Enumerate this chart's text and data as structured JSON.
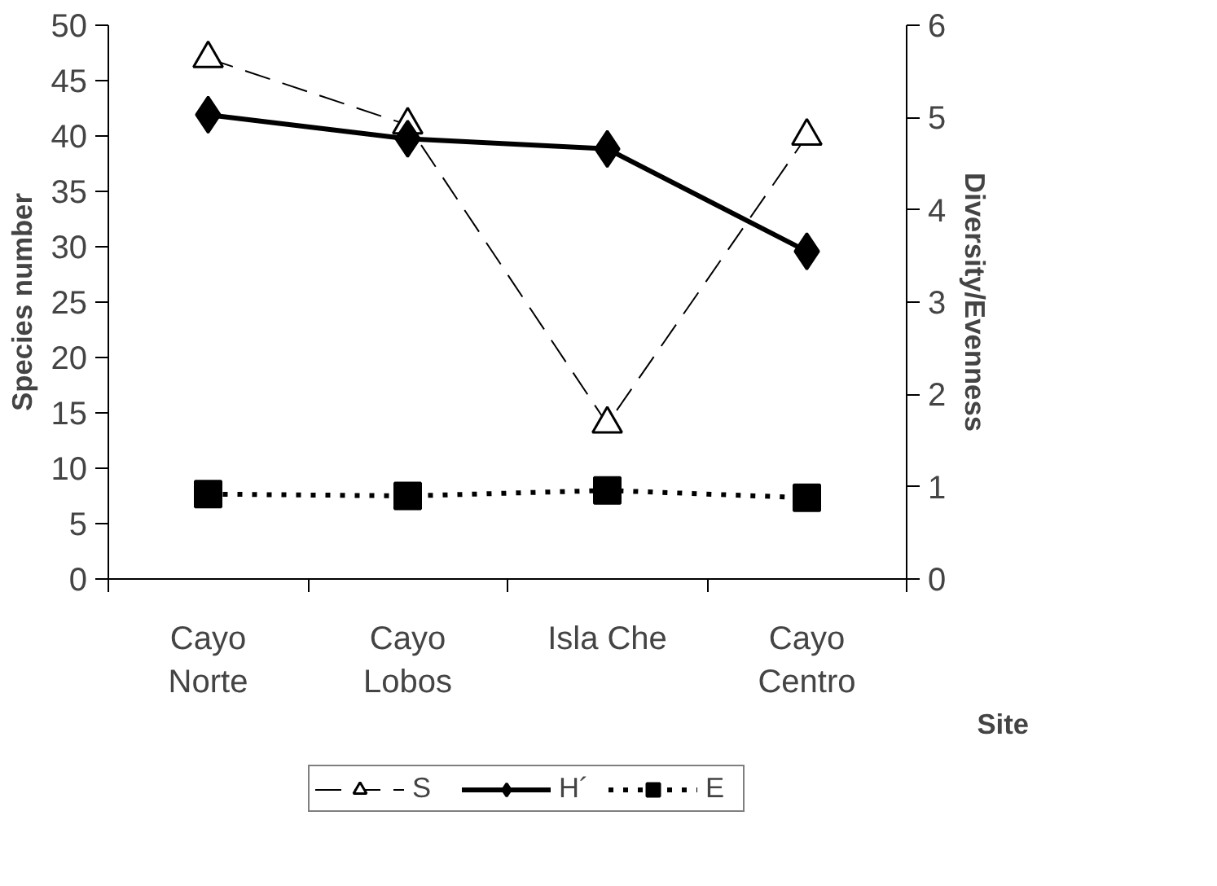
{
  "chart_data": {
    "type": "line",
    "xlabel": "Site",
    "ylabel": "Species number",
    "y2label": "Diversity/Evenness",
    "categories": [
      "Cayo\nNorte",
      "Cayo\nLobos",
      "Isla Che",
      "Cayo\nCentro"
    ],
    "series": [
      {
        "name": "S",
        "color": "#000000",
        "values": [
          47,
          41,
          14,
          40
        ],
        "marker": "triangle",
        "line_style": "dashed"
      },
      {
        "name": "H´",
        "color": "#000000",
        "values": [
          5.03,
          4.77,
          4.66,
          3.55
        ],
        "marker": "diamond",
        "line_style": "solid",
        "axis": "y2"
      },
      {
        "name": "E",
        "color": "#000000",
        "values": [
          0.92,
          0.9,
          0.96,
          0.88
        ],
        "marker": "square",
        "line_style": "dotted",
        "axis": "y2"
      }
    ],
    "ylim": [
      0,
      50
    ],
    "yticks": [
      0,
      5,
      10,
      15,
      20,
      25,
      30,
      35,
      40,
      45,
      50
    ],
    "y2lim": [
      0,
      6
    ],
    "y2ticks": [
      0,
      1,
      2,
      3,
      4,
      5,
      6
    ],
    "grid": false,
    "legend": "bottom"
  }
}
